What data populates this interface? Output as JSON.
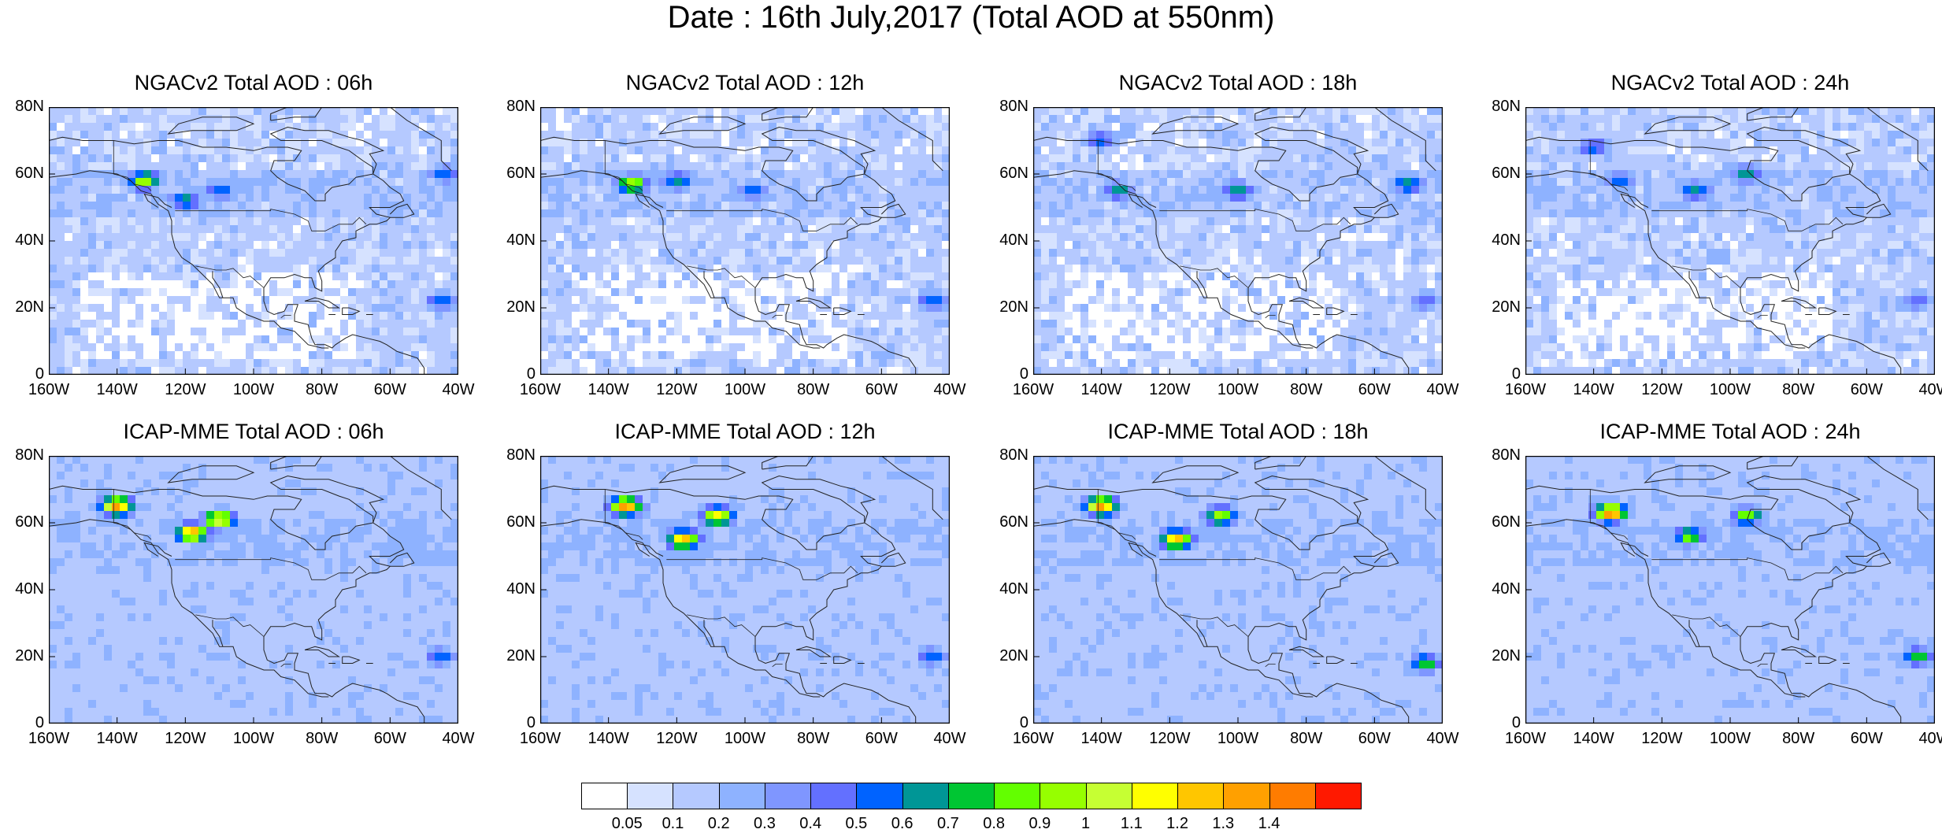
{
  "title": "Date : 16th July,2017 (Total AOD at 550nm)",
  "panels": [
    {
      "title": "NGACv2 Total AOD : 06h",
      "model": "NGACv2",
      "hour": "06h",
      "plumes": [
        [
          -132,
          58,
          1.0
        ],
        [
          -120,
          52,
          0.7
        ],
        [
          -110,
          55,
          0.6
        ],
        [
          -44,
          60,
          0.6
        ],
        [
          -45,
          22,
          0.6
        ]
      ]
    },
    {
      "title": "NGACv2 Total AOD : 12h",
      "model": "NGACv2",
      "hour": "12h",
      "plumes": [
        [
          -133,
          57,
          1.0
        ],
        [
          -120,
          58,
          0.7
        ],
        [
          -98,
          55,
          0.6
        ],
        [
          -45,
          22,
          0.6
        ]
      ]
    },
    {
      "title": "NGACv2 Total AOD : 18h",
      "model": "NGACv2",
      "hour": "18h",
      "plumes": [
        [
          -140,
          70,
          0.6
        ],
        [
          -135,
          55,
          0.7
        ],
        [
          -100,
          55,
          0.7
        ],
        [
          -50,
          57,
          0.7
        ],
        [
          -45,
          22,
          0.5
        ]
      ]
    },
    {
      "title": "NGACv2 Total AOD : 24h",
      "model": "NGACv2",
      "hour": "24h",
      "plumes": [
        [
          -140,
          68,
          0.6
        ],
        [
          -132,
          58,
          0.6
        ],
        [
          -110,
          55,
          0.7
        ],
        [
          -95,
          60,
          0.7
        ],
        [
          -45,
          22,
          0.5
        ]
      ]
    },
    {
      "title": "ICAP-MME Total AOD : 06h",
      "model": "ICAP-MME",
      "hour": "06h",
      "plumes": [
        [
          -140,
          65,
          1.4
        ],
        [
          -118,
          57,
          1.3
        ],
        [
          -110,
          61,
          1.2
        ],
        [
          -45,
          20,
          0.6
        ]
      ]
    },
    {
      "title": "ICAP-MME Total AOD : 12h",
      "model": "ICAP-MME",
      "hour": "12h",
      "plumes": [
        [
          -135,
          65,
          1.4
        ],
        [
          -118,
          55,
          1.3
        ],
        [
          -108,
          62,
          1.2
        ],
        [
          -45,
          20,
          0.6
        ]
      ]
    },
    {
      "title": "ICAP-MME Total AOD : 18h",
      "model": "ICAP-MME",
      "hour": "18h",
      "plumes": [
        [
          -140,
          65,
          1.4
        ],
        [
          -118,
          55,
          1.3
        ],
        [
          -105,
          62,
          1.0
        ],
        [
          -45,
          18,
          0.8
        ]
      ]
    },
    {
      "title": "ICAP-MME Total AOD : 24h",
      "model": "ICAP-MME",
      "hour": "24h",
      "plumes": [
        [
          -135,
          63,
          1.4
        ],
        [
          -112,
          56,
          0.9
        ],
        [
          -95,
          62,
          0.9
        ],
        [
          -45,
          20,
          0.8
        ]
      ]
    }
  ],
  "axes": {
    "lat_labels": [
      "80N",
      "60N",
      "40N",
      "20N",
      "0"
    ],
    "lat_values": [
      80,
      60,
      40,
      20,
      0
    ],
    "lon_labels": [
      "160W",
      "140W",
      "120W",
      "100W",
      "80W",
      "60W",
      "40W"
    ],
    "lon_values": [
      -160,
      -140,
      -120,
      -100,
      -80,
      -60,
      -40
    ],
    "lon_range": [
      -160,
      -40
    ],
    "lat_range": [
      0,
      80
    ]
  },
  "colorbar": {
    "labels": [
      "0.05",
      "0.1",
      "0.2",
      "0.3",
      "0.4",
      "0.5",
      "0.6",
      "0.7",
      "0.8",
      "0.9",
      "1",
      "1.1",
      "1.2",
      "1.3",
      "1.4"
    ],
    "colors": [
      "#ffffff",
      "#d6e2ff",
      "#b5c9ff",
      "#8eb2ff",
      "#7f96ff",
      "#6370ff",
      "#0063ff",
      "#009696",
      "#00c633",
      "#63ff00",
      "#96ff00",
      "#c6ff33",
      "#ffff00",
      "#ffc600",
      "#ffa000",
      "#ff7c00",
      "#ff1900"
    ]
  }
}
